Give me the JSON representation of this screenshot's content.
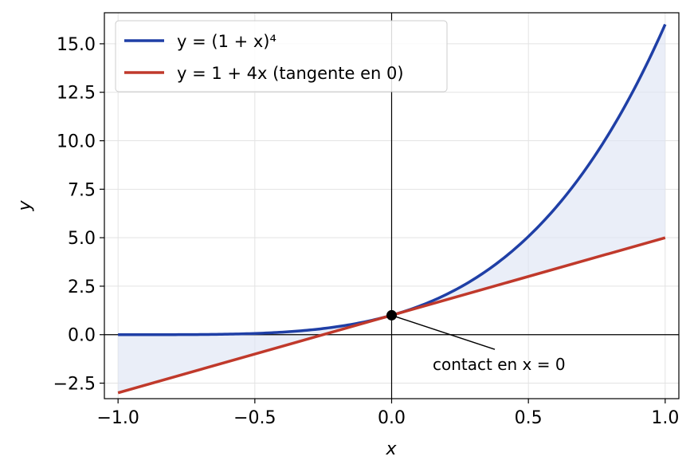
{
  "chart_data": {
    "type": "line",
    "xlabel": "x",
    "ylabel": "y",
    "xlim": [
      -1.05,
      1.05
    ],
    "ylim": [
      -3.3,
      16.6
    ],
    "x_ticks": [
      -1.0,
      -0.5,
      0.0,
      0.5,
      1.0
    ],
    "x_tick_labels": [
      "−1.0",
      "−0.5",
      "0.0",
      "0.5",
      "1.0"
    ],
    "y_ticks": [
      -2.5,
      0.0,
      2.5,
      5.0,
      7.5,
      10.0,
      12.5,
      15.0
    ],
    "y_tick_labels": [
      "−2.5",
      "0.0",
      "2.5",
      "5.0",
      "7.5",
      "10.0",
      "12.5",
      "15.0"
    ],
    "grid": true,
    "legend_position": "top-left",
    "x_domain": [
      -1.0,
      1.0
    ],
    "series": [
      {
        "name": "y = (1 + x)⁴",
        "color": "#1f3fa6",
        "x": [
          -1.0,
          -0.9,
          -0.8,
          -0.7,
          -0.6,
          -0.5,
          -0.4,
          -0.3,
          -0.2,
          -0.1,
          0.0,
          0.1,
          0.2,
          0.3,
          0.4,
          0.5,
          0.6,
          0.7,
          0.8,
          0.9,
          1.0
        ],
        "y": [
          0.0,
          0.0001,
          0.0016,
          0.0081,
          0.0256,
          0.0625,
          0.1296,
          0.2401,
          0.4096,
          0.6561,
          1.0,
          1.4641,
          2.0736,
          2.8561,
          3.8416,
          5.0625,
          6.5536,
          8.3521,
          10.4976,
          13.0321,
          16.0
        ]
      },
      {
        "name": "y = 1 + 4x (tangente en 0)",
        "color": "#c0392b",
        "x": [
          -1.0,
          1.0
        ],
        "y": [
          -3.0,
          5.0
        ]
      }
    ],
    "fill_between": {
      "color": "#dfe5f5",
      "description": ""
    },
    "point": {
      "x": 0.0,
      "y": 1.0,
      "color": "#000000"
    },
    "annotation": {
      "text": "contact en x = 0",
      "xy": [
        0.0,
        1.0
      ],
      "xytext": [
        0.15,
        -1.5
      ]
    }
  }
}
